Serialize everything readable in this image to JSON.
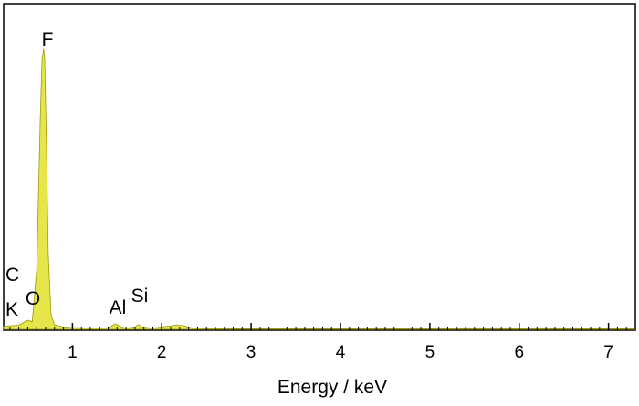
{
  "chart_data": {
    "type": "area",
    "xlabel": "Energy / keV",
    "ylabel": "",
    "xlim": [
      0.23,
      7.3
    ],
    "ylim": [
      0,
      1.0
    ],
    "xticks": [
      "1",
      "2",
      "3",
      "4",
      "5",
      "6",
      "7"
    ],
    "grid": false,
    "legend": "none",
    "fill_color": "#e6e64a",
    "stroke_color": "#9a9a10",
    "peaks": [
      {
        "label": "C",
        "x": 0.28,
        "y": 0.012
      },
      {
        "label": "K",
        "x": 0.34,
        "y": 0.01
      },
      {
        "label": "O",
        "x": 0.525,
        "y": 0.03
      },
      {
        "label": "F",
        "x": 0.677,
        "y": 0.935
      },
      {
        "label": "Al",
        "x": 1.49,
        "y": 0.018
      },
      {
        "label": "Si",
        "x": 1.74,
        "y": 0.016
      }
    ],
    "series": [
      {
        "x": [
          0.23,
          0.3,
          0.4,
          0.5,
          0.55,
          0.6,
          0.64,
          0.66,
          0.677,
          0.69,
          0.71,
          0.73,
          0.76,
          0.8,
          0.9,
          1.0,
          1.2,
          1.4,
          1.46,
          1.49,
          1.53,
          1.6,
          1.7,
          1.74,
          1.78,
          1.9,
          2.1,
          2.17,
          2.25,
          2.35,
          2.5,
          3.0,
          4.0,
          5.0,
          6.0,
          7.0,
          7.3
        ],
        "y": [
          0.01,
          0.012,
          0.014,
          0.03,
          0.025,
          0.2,
          0.7,
          0.9,
          0.935,
          0.9,
          0.6,
          0.25,
          0.05,
          0.015,
          0.008,
          0.006,
          0.004,
          0.005,
          0.015,
          0.018,
          0.01,
          0.004,
          0.008,
          0.016,
          0.008,
          0.004,
          0.012,
          0.015,
          0.012,
          0.004,
          0.003,
          0.002,
          0.002,
          0.002,
          0.002,
          0.002,
          0.002
        ]
      }
    ]
  }
}
